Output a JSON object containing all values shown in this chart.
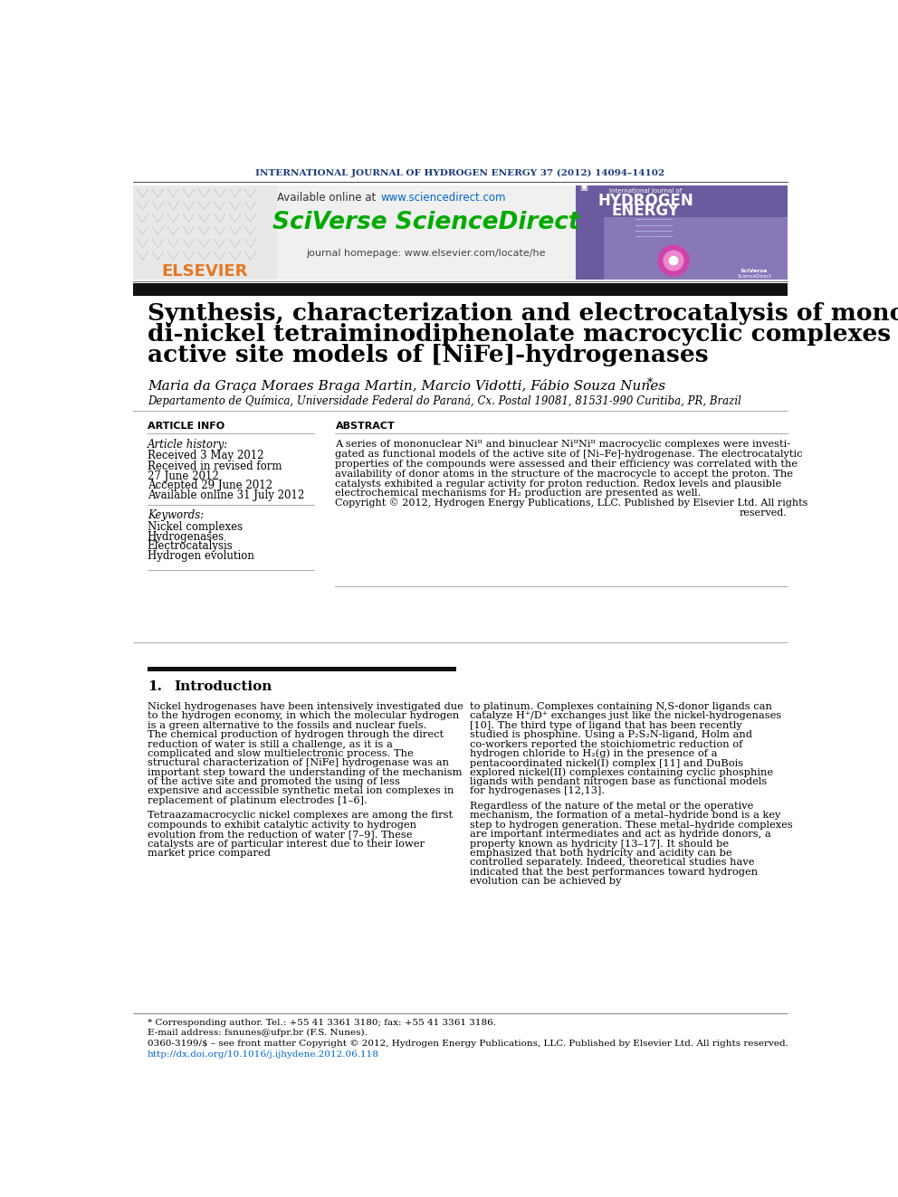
{
  "journal_header": "INTERNATIONAL JOURNAL OF HYDROGEN ENERGY 37 (2012) 14094–14102",
  "available_online": "Available online at ",
  "sciencedirect_url": "www.sciencedirect.com",
  "sciverse_text": "SciVerse ScienceDirect",
  "journal_homepage": "journal homepage: www.elsevier.com/locate/he",
  "elsevier_text": "ELSEVIER",
  "title_line1": "Synthesis, characterization and electrocatalysis of mono- and",
  "title_line2": "di-nickel tetraiminodiphenolate macrocyclic complexes as",
  "title_line3": "active site models of [NiFe]-hydrogenases",
  "authors": "Maria da Graça Moraes Braga Martin, Marcio Vidotti, Fábio Souza Nunes",
  "authors_star": "*",
  "affiliation": "Departamento de Química, Universidade Federal do Paraná, Cx. Postal 19081, 81531-990 Curitiba, PR, Brazil",
  "article_info_header": "ARTICLE INFO",
  "abstract_header": "ABSTRACT",
  "article_history_label": "Article history:",
  "received1": "Received 3 May 2012",
  "received2": "Received in revised form",
  "received2b": "27 June 2012",
  "accepted": "Accepted 29 June 2012",
  "available": "Available online 31 July 2012",
  "keywords_label": "Keywords:",
  "keyword1": "Nickel complexes",
  "keyword2": "Hydrogenases",
  "keyword3": "Electrocatalysis",
  "keyword4": "Hydrogen evolution",
  "abstract_lines": [
    "A series of mononuclear Niᴵᴵ and binuclear NiᴵᴵNiᴵᴵ macrocyclic complexes were investi-",
    "gated as functional models of the active site of [Ni–Fe]-hydrogenase. The electrocatalytic",
    "properties of the compounds were assessed and their efficiency was correlated with the",
    "availability of donor atoms in the structure of the macrocycle to accept the proton. The",
    "catalysts exhibited a regular activity for proton reduction. Redox levels and plausible",
    "electrochemical mechanisms for H₂ production are presented as well."
  ],
  "copyright_line1": "Copyright © 2012, Hydrogen Energy Publications, LLC. Published by Elsevier Ltd. All rights",
  "copyright_line2": "reserved.",
  "section1_num": "1.",
  "section1_title": "Introduction",
  "intro_col1_para1": "Nickel hydrogenases have been intensively investigated due to the hydrogen economy, in which the molecular hydrogen is a green alternative to the fossils and nuclear fuels. The chemical production of hydrogen through the direct reduction of water is still a challenge, as it is a complicated and slow multielectronic process. The structural characterization of [NiFe] hydrogenase was an important step toward the understanding of the mechanism of the active site and promoted the using of less expensive and accessible synthetic metal ion complexes in replacement of platinum electrodes [1–6].",
  "intro_col1_para2": "Tetraazamacrocyclic nickel complexes are among the first compounds to exhibit catalytic activity to hydrogen evolution from the reduction of water [7–9]. These catalysts are of particular interest due to their lower market price compared",
  "intro_col2_para1": "to platinum. Complexes containing N,S-donor ligands can catalyze H⁺/D⁺ exchanges just like the nickel-hydrogenases [10]. The third type of ligand that has been recently studied is phosphine. Using a P₂S₂N-ligand, Holm and co-workers reported the stoichiometric reduction of hydrogen chloride to H₂(g) in the presence of a pentacoordinated nickel(I) complex [11] and DuBois explored nickel(II) complexes containing cyclic phosphine ligands with pendant nitrogen base as functional models for hydrogenases [12,13].",
  "intro_col2_para2": "Regardless of the nature of the metal or the operative mechanism, the formation of a metal–hydride bond is a key step to hydrogen generation. These metal–hydride complexes are important intermediates and act as hydride donors, a property known as hydricity [13–17]. It should be emphasized that both hydricity and acidity can be controlled separately. Indeed, theoretical studies have indicated that the best performances toward hydrogen evolution can be achieved by",
  "footnote_line1": "* Corresponding author. Tel.: +55 41 3361 3180; fax: +55 41 3361 3186.",
  "footnote_line2": "E-mail address: fsnunes@ufpr.br (F.S. Nunes).",
  "footnote_line3": "0360-3199/$ – see front matter Copyright © 2012, Hydrogen Energy Publications, LLC. Published by Elsevier Ltd. All rights reserved.",
  "footnote_line4": "http://dx.doi.org/10.1016/j.ijhydene.2012.06.118",
  "bg_color": "#ffffff",
  "header_color": "#1a3a7a",
  "elsevier_orange": "#e87722",
  "sciverse_green": "#00aa00",
  "url_color": "#0066cc",
  "header_bar_color": "#111111",
  "section_bar_color": "#111111"
}
